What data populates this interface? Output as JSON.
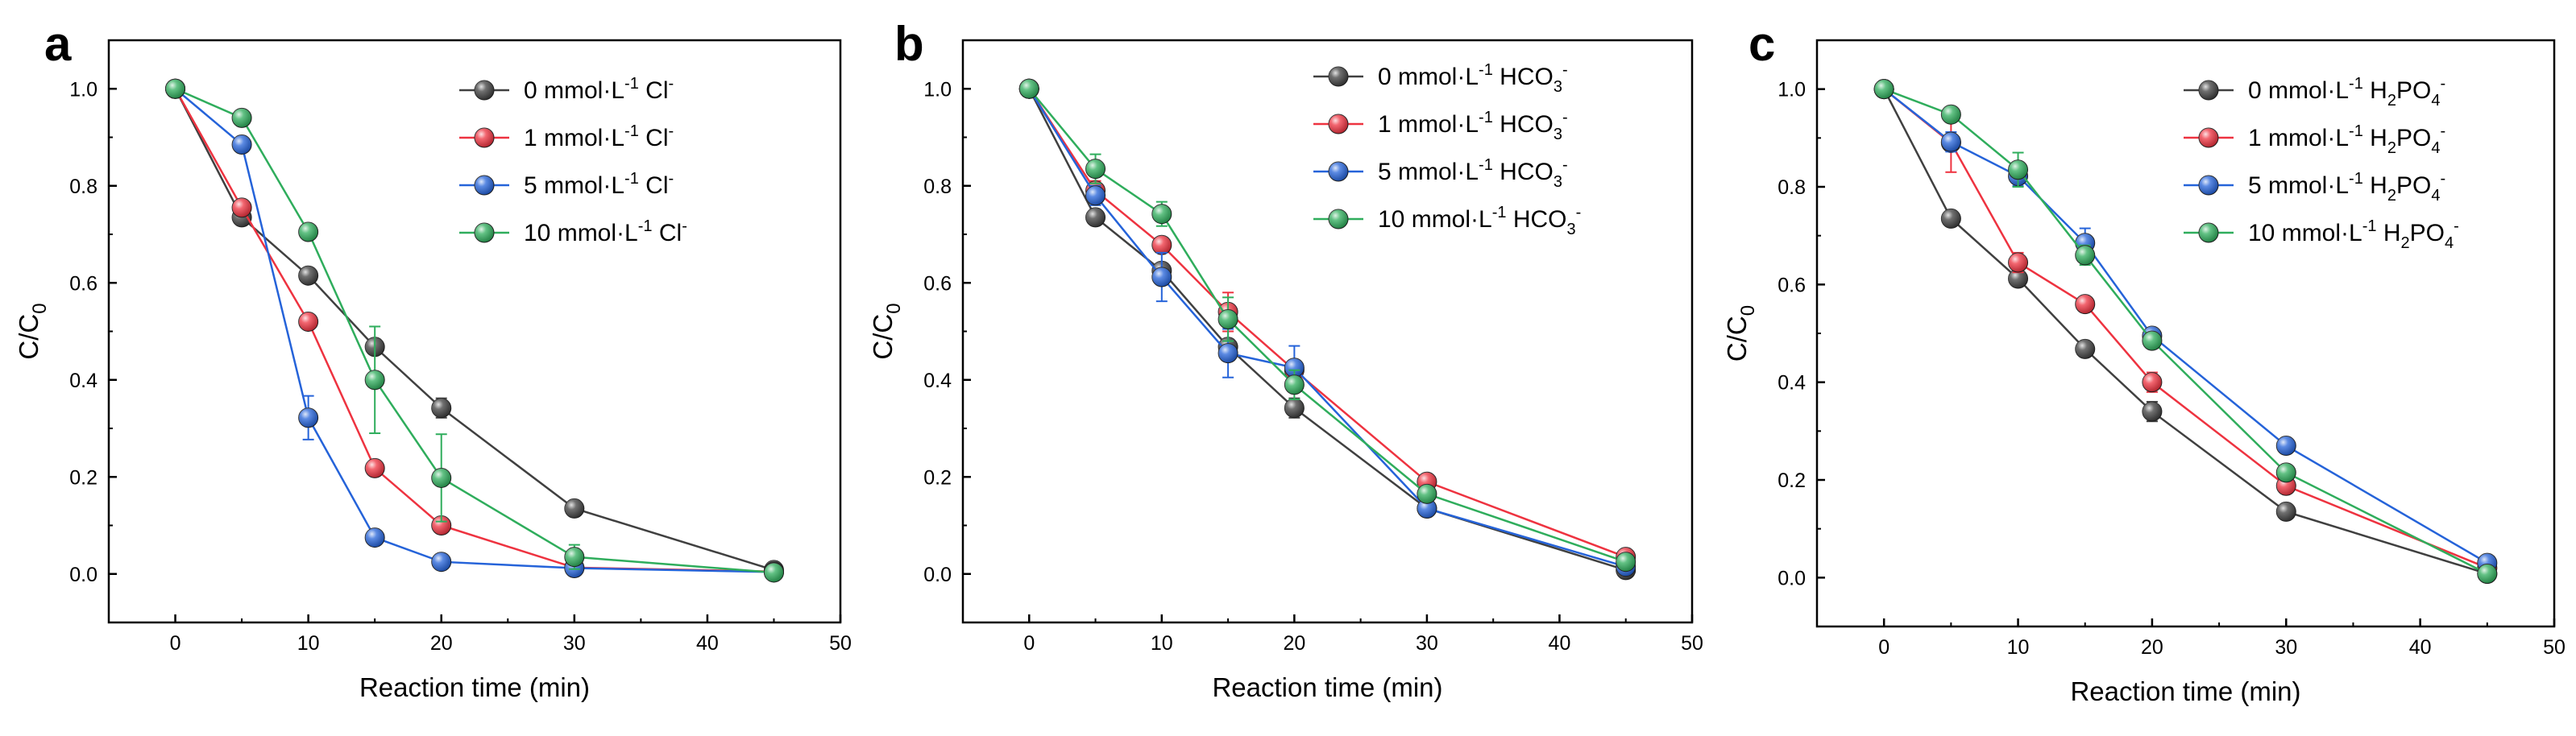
{
  "chart_data": [
    {
      "type": "line",
      "panel_label": "a",
      "xlabel": "Reaction time (min)",
      "ylabel_main": "C/C",
      "ylabel_sub": "0",
      "xlim": [
        -5,
        50
      ],
      "ylim": [
        -0.1,
        1.1
      ],
      "xticks": [
        0,
        10,
        20,
        30,
        40,
        50
      ],
      "yticks": [
        0.0,
        0.2,
        0.4,
        0.6,
        0.8,
        1.0
      ],
      "x": [
        0,
        5,
        10,
        15,
        20,
        30,
        45
      ],
      "legend_position": "top-right",
      "series": [
        {
          "name": "0 mmol·L⁻¹ Cl⁻",
          "legend": {
            "prefix": "0 mmol·L",
            "sup1": "-1",
            "mid": " Cl",
            "sub": "",
            "sup2": "-"
          },
          "color": "#404040",
          "values": [
            1.0,
            0.735,
            0.615,
            0.468,
            0.342,
            0.135,
            0.008
          ],
          "errors": [
            0,
            0.01,
            0.012,
            0.015,
            0.02,
            0.01,
            0.005
          ]
        },
        {
          "name": "1 mmol·L⁻¹ Cl⁻",
          "legend": {
            "prefix": "1 mmol·L",
            "sup1": "-1",
            "mid": " Cl",
            "sub": "",
            "sup2": "-"
          },
          "color": "#ee3340",
          "values": [
            1.0,
            0.755,
            0.52,
            0.218,
            0.1,
            0.013,
            0.005
          ],
          "errors": [
            0,
            0.01,
            0.01,
            0.01,
            0.015,
            0.005,
            0.005
          ]
        },
        {
          "name": "5 mmol·L⁻¹ Cl⁻",
          "legend": {
            "prefix": "5 mmol·L",
            "sup1": "-1",
            "mid": " Cl",
            "sub": "",
            "sup2": "-"
          },
          "color": "#2563d9",
          "values": [
            1.0,
            0.885,
            0.322,
            0.075,
            0.025,
            0.012,
            0.004
          ],
          "errors": [
            0,
            0.01,
            0.045,
            0.01,
            0.005,
            0.005,
            0.003
          ]
        },
        {
          "name": "10 mmol·L⁻¹ Cl⁻",
          "legend": {
            "prefix": "10 mmol·L",
            "sup1": "-1",
            "mid": " Cl",
            "sub": "",
            "sup2": "-"
          },
          "color": "#2fad5c",
          "values": [
            1.0,
            0.94,
            0.705,
            0.4,
            0.198,
            0.035,
            0.003
          ],
          "errors": [
            0,
            0.01,
            0.01,
            0.11,
            0.09,
            0.025,
            0.003
          ]
        }
      ]
    },
    {
      "type": "line",
      "panel_label": "b",
      "xlabel": "Reaction time (min)",
      "ylabel_main": "C/C",
      "ylabel_sub": "0",
      "xlim": [
        -5,
        50
      ],
      "ylim": [
        -0.1,
        1.1
      ],
      "xticks": [
        0,
        10,
        20,
        30,
        40,
        50
      ],
      "yticks": [
        0.0,
        0.2,
        0.4,
        0.6,
        0.8,
        1.0
      ],
      "x": [
        0,
        5,
        10,
        15,
        20,
        30,
        45
      ],
      "legend_position": "top-right",
      "series": [
        {
          "name": "0 mmol·L⁻¹ HCO₃⁻",
          "legend": {
            "prefix": "0 mmol·L",
            "sup1": "-1",
            "mid": " HCO",
            "sub": "3",
            "sup2": "-"
          },
          "color": "#404040",
          "values": [
            1.0,
            0.735,
            0.625,
            0.468,
            0.342,
            0.135,
            0.008
          ],
          "errors": [
            0,
            0.01,
            0.012,
            0.015,
            0.02,
            0.01,
            0.005
          ]
        },
        {
          "name": "1 mmol·L⁻¹ HCO₃⁻",
          "legend": {
            "prefix": "1 mmol·L",
            "sup1": "-1",
            "mid": " HCO",
            "sub": "3",
            "sup2": "-"
          },
          "color": "#ee3340",
          "values": [
            1.0,
            0.79,
            0.678,
            0.54,
            0.42,
            0.19,
            0.035
          ],
          "errors": [
            0,
            0.02,
            0.015,
            0.04,
            0.02,
            0.01,
            0.005
          ]
        },
        {
          "name": "5 mmol·L⁻¹ HCO₃⁻",
          "legend": {
            "prefix": "5 mmol·L",
            "sup1": "-1",
            "mid": " HCO",
            "sub": "3",
            "sup2": "-"
          },
          "color": "#2563d9",
          "values": [
            1.0,
            0.78,
            0.612,
            0.455,
            0.425,
            0.135,
            0.015
          ],
          "errors": [
            0,
            0.02,
            0.05,
            0.05,
            0.045,
            0.01,
            0.005
          ]
        },
        {
          "name": "10 mmol·L⁻¹ HCO₃⁻",
          "legend": {
            "prefix": "10 mmol·L",
            "sup1": "-1",
            "mid": " HCO",
            "sub": "3",
            "sup2": "-"
          },
          "color": "#2fad5c",
          "values": [
            1.0,
            0.835,
            0.742,
            0.525,
            0.39,
            0.165,
            0.025
          ],
          "errors": [
            0,
            0.03,
            0.025,
            0.045,
            0.03,
            0.01,
            0.005
          ]
        }
      ]
    },
    {
      "type": "line",
      "panel_label": "c",
      "xlabel": "Reaction time (min)",
      "ylabel_main": "C/C",
      "ylabel_sub": "0",
      "xlim": [
        -5,
        50
      ],
      "ylim": [
        -0.1,
        1.1
      ],
      "xticks": [
        0,
        10,
        20,
        30,
        40,
        50
      ],
      "yticks": [
        0.0,
        0.2,
        0.4,
        0.6,
        0.8,
        1.0
      ],
      "x": [
        0,
        5,
        10,
        15,
        20,
        30,
        45
      ],
      "legend_position": "top-right",
      "series": [
        {
          "name": "0 mmol·L⁻¹ H₂PO₄⁻",
          "legend": {
            "prefix": "0 mmol·L",
            "sup1": "-1",
            "mid": " H",
            "sub": "2",
            "mid2": "PO",
            "sub2": "4",
            "sup2": "-"
          },
          "color": "#404040",
          "values": [
            1.0,
            0.735,
            0.612,
            0.468,
            0.34,
            0.135,
            0.008
          ],
          "errors": [
            0,
            0.01,
            0.015,
            0.015,
            0.02,
            0.01,
            0.005
          ]
        },
        {
          "name": "1 mmol·L⁻¹ H₂PO₄⁻",
          "legend": {
            "prefix": "1 mmol·L",
            "sup1": "-1",
            "mid": " H",
            "sub": "2",
            "mid2": "PO",
            "sub2": "4",
            "sup2": "-"
          },
          "color": "#ee3340",
          "values": [
            1.0,
            0.89,
            0.645,
            0.56,
            0.4,
            0.188,
            0.02
          ],
          "errors": [
            0,
            0.06,
            0.02,
            0.015,
            0.02,
            0.015,
            0.005
          ]
        },
        {
          "name": "5 mmol·L⁻¹ H₂PO₄⁻",
          "legend": {
            "prefix": "5 mmol·L",
            "sup1": "-1",
            "mid": " H",
            "sub": "2",
            "mid2": "PO",
            "sub2": "4",
            "sup2": "-"
          },
          "color": "#2563d9",
          "values": [
            1.0,
            0.892,
            0.822,
            0.685,
            0.495,
            0.27,
            0.03
          ],
          "errors": [
            0,
            0.02,
            0.02,
            0.03,
            0.015,
            0.01,
            0.005
          ]
        },
        {
          "name": "10 mmol·L⁻¹ H₂PO₄⁻",
          "legend": {
            "prefix": "10 mmol·L",
            "sup1": "-1",
            "mid": " H",
            "sub": "2",
            "mid2": "PO",
            "sub2": "4",
            "sup2": "-"
          },
          "color": "#2fad5c",
          "values": [
            1.0,
            0.948,
            0.835,
            0.66,
            0.485,
            0.215,
            0.008
          ],
          "errors": [
            0,
            0.015,
            0.035,
            0.02,
            0.015,
            0.015,
            0.005
          ]
        }
      ]
    }
  ]
}
